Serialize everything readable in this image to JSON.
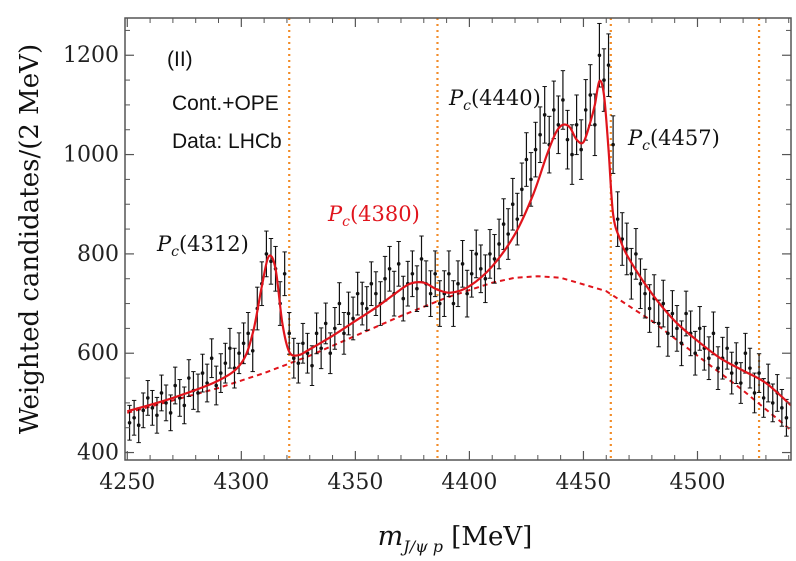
{
  "chart_data": {
    "type": "scatter",
    "title": "",
    "xlabel": "m_{J/ψ p} [MeV]",
    "ylabel": "Weighted candidates/(2 MeV)",
    "xlim": [
      4249,
      4541
    ],
    "ylim": [
      385,
      1275
    ],
    "x_ticks": [
      4250,
      4300,
      4350,
      4400,
      4450,
      4500
    ],
    "y_ticks": [
      400,
      600,
      800,
      1000,
      1200
    ],
    "annotations": {
      "panel": "(II)",
      "model": "Cont.+OPE",
      "data_source": "Data: LHCb"
    },
    "thresholds": [
      {
        "x": 4321,
        "color": "#f28c28"
      },
      {
        "x": 4386,
        "color": "#f28c28"
      },
      {
        "x": 4462,
        "color": "#f28c28"
      },
      {
        "x": 4527,
        "color": "#f28c28"
      }
    ],
    "states": [
      {
        "label": "Pc(4312)",
        "sub": "c",
        "mass": "(4312)",
        "x": 4312,
        "y": 790,
        "color": "#111111"
      },
      {
        "label": "Pc(4380)",
        "sub": "c",
        "mass": "(4380)",
        "x": 4380,
        "y": 750,
        "color": "#e0141c"
      },
      {
        "label": "Pc(4440)",
        "sub": "c",
        "mass": "(4440)",
        "x": 4440,
        "y": 1060,
        "color": "#111111"
      },
      {
        "label": "Pc(4457)",
        "sub": "c",
        "mass": "(4457)",
        "x": 4457,
        "y": 1150,
        "color": "#111111"
      }
    ],
    "series": [
      {
        "name": "Data: LHCb",
        "style": "points-with-errors",
        "color": "#111111"
      },
      {
        "name": "Cont.+OPE fit",
        "style": "solid",
        "color": "#e0141c"
      },
      {
        "name": "Background",
        "style": "dashed",
        "color": "#e0141c"
      }
    ],
    "background_curve": {
      "x": [
        4250,
        4270,
        4290,
        4310,
        4330,
        4350,
        4370,
        4390,
        4410,
        4420,
        4430,
        4440,
        4460,
        4480,
        4500,
        4520,
        4541
      ],
      "y": [
        480,
        505,
        530,
        560,
        595,
        635,
        675,
        712,
        742,
        752,
        755,
        752,
        725,
        665,
        595,
        525,
        445
      ]
    },
    "fit_curve": {
      "x": [
        4250,
        4270,
        4290,
        4300,
        4305,
        4309,
        4312,
        4315,
        4318,
        4321,
        4325,
        4330,
        4340,
        4350,
        4360,
        4368,
        4374,
        4380,
        4386,
        4392,
        4400,
        4410,
        4420,
        4428,
        4434,
        4438,
        4441,
        4444,
        4447,
        4450,
        4453,
        4455,
        4457,
        4459,
        4461,
        4463,
        4466,
        4470,
        4480,
        4490,
        4500,
        4510,
        4520,
        4530,
        4541
      ],
      "y": [
        483,
        510,
        545,
        580,
        640,
        735,
        795,
        770,
        660,
        603,
        596,
        608,
        635,
        665,
        695,
        722,
        740,
        742,
        728,
        722,
        735,
        775,
        840,
        920,
        1000,
        1045,
        1060,
        1055,
        1030,
        1025,
        1065,
        1100,
        1148,
        1120,
        1010,
        880,
        830,
        790,
        720,
        665,
        625,
        590,
        565,
        540,
        495
      ]
    },
    "data_points": {
      "x": [
        4251,
        4253,
        4255,
        4257,
        4259,
        4261,
        4263,
        4265,
        4267,
        4269,
        4271,
        4273,
        4275,
        4277,
        4279,
        4281,
        4283,
        4285,
        4287,
        4289,
        4291,
        4293,
        4295,
        4297,
        4299,
        4301,
        4303,
        4305,
        4307,
        4309,
        4311,
        4313,
        4315,
        4317,
        4319,
        4321,
        4323,
        4325,
        4327,
        4329,
        4331,
        4333,
        4335,
        4337,
        4339,
        4341,
        4343,
        4345,
        4347,
        4349,
        4351,
        4353,
        4355,
        4357,
        4359,
        4361,
        4363,
        4365,
        4367,
        4369,
        4371,
        4373,
        4375,
        4377,
        4379,
        4381,
        4383,
        4385,
        4387,
        4389,
        4391,
        4393,
        4395,
        4397,
        4399,
        4401,
        4403,
        4405,
        4407,
        4409,
        4411,
        4413,
        4415,
        4417,
        4419,
        4421,
        4423,
        4425,
        4427,
        4429,
        4431,
        4433,
        4435,
        4437,
        4439,
        4441,
        4443,
        4445,
        4447,
        4449,
        4451,
        4453,
        4455,
        4457,
        4459,
        4461,
        4463,
        4465,
        4467,
        4469,
        4471,
        4473,
        4475,
        4477,
        4479,
        4481,
        4483,
        4485,
        4487,
        4489,
        4491,
        4493,
        4495,
        4497,
        4499,
        4501,
        4503,
        4505,
        4507,
        4509,
        4511,
        4513,
        4515,
        4517,
        4519,
        4521,
        4523,
        4525,
        4527,
        4529,
        4531,
        4533,
        4535,
        4537,
        4539
      ],
      "y": [
        460,
        470,
        455,
        485,
        510,
        490,
        475,
        520,
        500,
        480,
        535,
        510,
        495,
        550,
        525,
        520,
        560,
        540,
        590,
        535,
        560,
        580,
        610,
        570,
        600,
        620,
        640,
        605,
        690,
        740,
        800,
        785,
        770,
        700,
        760,
        640,
        590,
        580,
        620,
        600,
        575,
        640,
        610,
        660,
        600,
        650,
        700,
        640,
        680,
        670,
        720,
        700,
        690,
        740,
        720,
        700,
        750,
        770,
        720,
        780,
        710,
        740,
        760,
        730,
        790,
        740,
        720,
        760,
        700,
        720,
        760,
        700,
        740,
        780,
        720,
        760,
        800,
        770,
        750,
        800,
        790,
        820,
        860,
        840,
        900,
        870,
        930,
        990,
        950,
        1010,
        1040,
        1080,
        1020,
        1090,
        1060,
        1110,
        1030,
        1000,
        1060,
        1010,
        1090,
        1120,
        1060,
        1200,
        1150,
        1180,
        1020,
        870,
        830,
        810,
        760,
        800,
        740,
        720,
        690,
        710,
        660,
        700,
        640,
        680,
        650,
        620,
        680,
        640,
        600,
        650,
        610,
        590,
        640,
        570,
        590,
        610,
        560,
        580,
        540,
        600,
        570,
        520,
        560,
        510,
        540,
        500,
        520,
        490,
        470
      ],
      "err": [
        35,
        35,
        35,
        35,
        35,
        35,
        36,
        36,
        36,
        36,
        37,
        37,
        37,
        37,
        38,
        38,
        38,
        38,
        39,
        39,
        39,
        40,
        40,
        40,
        41,
        41,
        42,
        42,
        43,
        44,
        46,
        46,
        45,
        44,
        44,
        42,
        40,
        40,
        40,
        40,
        40,
        41,
        41,
        41,
        41,
        42,
        42,
        42,
        43,
        43,
        43,
        43,
        44,
        44,
        44,
        44,
        45,
        45,
        45,
        45,
        45,
        45,
        46,
        46,
        46,
        46,
        46,
        46,
        46,
        46,
        46,
        46,
        46,
        47,
        47,
        47,
        48,
        48,
        48,
        49,
        49,
        50,
        51,
        51,
        52,
        52,
        53,
        54,
        54,
        55,
        56,
        57,
        57,
        58,
        58,
        59,
        59,
        60,
        60,
        60,
        61,
        61,
        62,
        64,
        63,
        63,
        58,
        55,
        53,
        52,
        51,
        51,
        50,
        49,
        48,
        48,
        47,
        47,
        46,
        46,
        46,
        45,
        45,
        45,
        44,
        44,
        44,
        43,
        43,
        43,
        42,
        42,
        42,
        41,
        41,
        40,
        40,
        40,
        39,
        39,
        38,
        38,
        37,
        37,
        37
      ]
    }
  }
}
